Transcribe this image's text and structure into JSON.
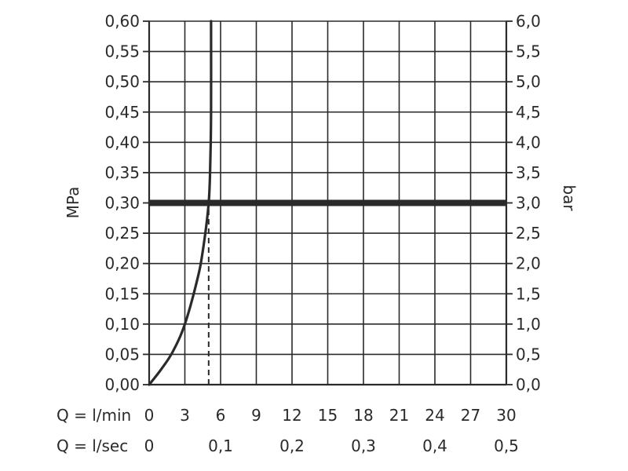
{
  "chart_data": {
    "type": "line",
    "title": "",
    "y_left": {
      "label": "MPa",
      "range": [
        0,
        0.6
      ],
      "ticks": [
        "0,00",
        "0,05",
        "0,10",
        "0,15",
        "0,20",
        "0,25",
        "0,30",
        "0,35",
        "0,40",
        "0,45",
        "0,50",
        "0,55",
        "0,60"
      ]
    },
    "y_right": {
      "label": "bar",
      "range": [
        0,
        6
      ],
      "ticks": [
        "0,0",
        "0,5",
        "1,0",
        "1,5",
        "2,0",
        "2,5",
        "3,0",
        "3,5",
        "4,0",
        "4,5",
        "5,0",
        "5,5",
        "6,0"
      ]
    },
    "x_lmin": {
      "label": "Q = l/min",
      "range": [
        0,
        30
      ],
      "ticks": [
        "0",
        "3",
        "6",
        "9",
        "12",
        "15",
        "18",
        "21",
        "24",
        "27",
        "30"
      ]
    },
    "x_lsec": {
      "label": "Q = l/sec",
      "ticks": [
        {
          "v": 0,
          "text": "0"
        },
        {
          "v": 0.1,
          "text": "0,1"
        },
        {
          "v": 0.2,
          "text": "0,2"
        },
        {
          "v": 0.3,
          "text": "0,3"
        },
        {
          "v": 0.4,
          "text": "0,4"
        },
        {
          "v": 0.5,
          "text": "0,5"
        }
      ]
    },
    "grid": true,
    "series": [
      {
        "x_unit": "l/min",
        "y_unit": "MPa",
        "points": [
          [
            0,
            0
          ],
          [
            1,
            0.025
          ],
          [
            2,
            0.055
          ],
          [
            3,
            0.1
          ],
          [
            4,
            0.17
          ],
          [
            4.5,
            0.22
          ],
          [
            5,
            0.3
          ],
          [
            5.15,
            0.38
          ],
          [
            5.2,
            0.45
          ],
          [
            5.2,
            0.6
          ]
        ],
        "color": "#2a2a2a"
      }
    ],
    "reference_lines": [
      {
        "orientation": "horizontal",
        "y": 0.3,
        "style": "solid-thick",
        "color": "#2a2a2a"
      },
      {
        "orientation": "vertical",
        "x": 5,
        "y_from": 0,
        "y_to": 0.3,
        "style": "dashed",
        "color": "#2a2a2a"
      }
    ]
  }
}
